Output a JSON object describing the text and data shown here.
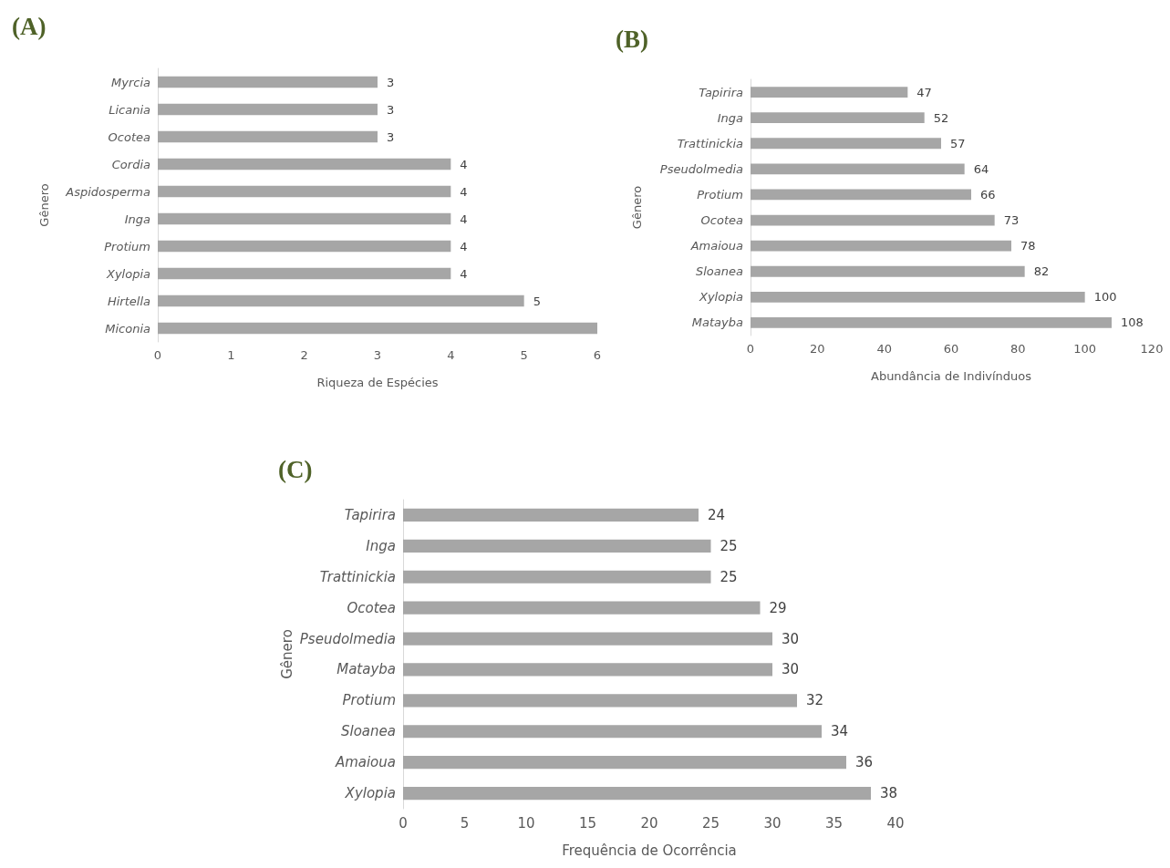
{
  "chart_data": [
    {
      "type": "bar",
      "orientation": "horizontal",
      "title": "(A)",
      "xlabel": "Riqueza de Espécies",
      "ylabel": "Gênero",
      "categories": [
        "Myrcia",
        "Licania",
        "Ocotea",
        "Cordia",
        "Aspidosperma",
        "Inga",
        "Protium",
        "Xylopia",
        "Hirtella",
        "Miconia"
      ],
      "values": [
        3,
        3,
        3,
        4,
        4,
        4,
        4,
        4,
        5,
        6
      ],
      "value_labels": [
        "3",
        "3",
        "3",
        "4",
        "4",
        "4",
        "4",
        "4",
        "5",
        null
      ],
      "color": "#a6a6a6",
      "xlim": [
        0,
        6
      ],
      "xticks": [
        0,
        1,
        2,
        3,
        4,
        5,
        6
      ]
    },
    {
      "type": "bar",
      "orientation": "horizontal",
      "title": "(B)",
      "xlabel": "Abundância de Indivínduos",
      "ylabel": "Gênero",
      "categories": [
        "Tapirira",
        "Inga",
        "Trattinickia",
        "Pseudolmedia",
        "Protium",
        "Ocotea",
        "Amaioua",
        "Sloanea",
        "Xylopia",
        "Matayba"
      ],
      "values": [
        47,
        52,
        57,
        64,
        66,
        73,
        78,
        82,
        100,
        108
      ],
      "data_labels": true,
      "color": "#a6a6a6",
      "xlim": [
        0,
        120
      ],
      "xticks": [
        0,
        20,
        40,
        60,
        80,
        100,
        120
      ]
    },
    {
      "type": "bar",
      "orientation": "horizontal",
      "title": "(C)",
      "xlabel": "Frequência de Ocorrência",
      "ylabel": "Gênero",
      "categories": [
        "Tapirira",
        "Inga",
        "Trattinickia",
        "Ocotea",
        "Pseudolmedia",
        "Matayba",
        "Protium",
        "Sloanea",
        "Amaioua",
        "Xylopia"
      ],
      "values": [
        24,
        25,
        25,
        29,
        30,
        30,
        32,
        34,
        36,
        38
      ],
      "data_labels": true,
      "color": "#a6a6a6",
      "xlim": [
        0,
        40
      ],
      "xticks": [
        0,
        5,
        10,
        15,
        20,
        25,
        30,
        35,
        40
      ]
    }
  ]
}
